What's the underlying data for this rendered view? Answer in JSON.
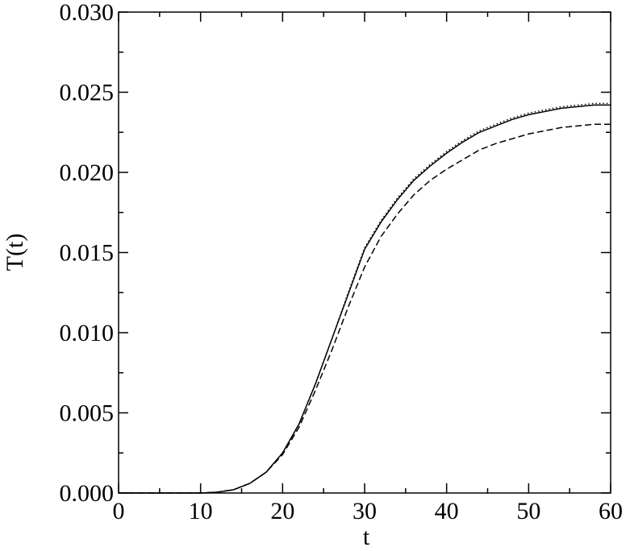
{
  "chart_data": {
    "type": "line",
    "x_label": "t",
    "y_label": "T(t)",
    "x": [
      0,
      2,
      4,
      6,
      8,
      10,
      12,
      14,
      16,
      18,
      20,
      22,
      24,
      26,
      28,
      30,
      32,
      34,
      36,
      38,
      40,
      42,
      44,
      46,
      48,
      50,
      52,
      54,
      56,
      58,
      60
    ],
    "series": [
      {
        "color": "#000000",
        "style": "solid",
        "values": [
          0,
          0,
          0,
          0,
          0,
          0,
          5e-05,
          0.0002,
          0.0006,
          0.0013,
          0.0025,
          0.0043,
          0.0068,
          0.0096,
          0.0124,
          0.0152,
          0.0169,
          0.0183,
          0.0195,
          0.0204,
          0.0212,
          0.0219,
          0.0225,
          0.0229,
          0.0233,
          0.0236,
          0.0238,
          0.024,
          0.0241,
          0.0242,
          0.0242
        ]
      },
      {
        "color": "#000000",
        "style": "dotted",
        "values": [
          0,
          0,
          0,
          0,
          0,
          0,
          5e-05,
          0.0002,
          0.0006,
          0.0013,
          0.0025,
          0.0043,
          0.0068,
          0.0096,
          0.0125,
          0.0153,
          0.017,
          0.0184,
          0.0196,
          0.0205,
          0.0213,
          0.022,
          0.0226,
          0.023,
          0.0234,
          0.0237,
          0.0239,
          0.0241,
          0.0242,
          0.0243,
          0.0243
        ]
      },
      {
        "color": "#000000",
        "style": "dashed",
        "values": [
          0,
          0,
          0,
          0,
          0,
          0,
          5e-05,
          0.0002,
          0.0006,
          0.0013,
          0.0024,
          0.0041,
          0.0064,
          0.0089,
          0.0116,
          0.0141,
          0.016,
          0.0174,
          0.0186,
          0.0195,
          0.0202,
          0.0208,
          0.0214,
          0.0218,
          0.0221,
          0.0224,
          0.0226,
          0.0228,
          0.0229,
          0.023,
          0.023
        ]
      }
    ],
    "xlim": [
      0,
      60
    ],
    "xticks": [
      0,
      10,
      20,
      30,
      40,
      50,
      60
    ],
    "xminorticks": [
      5,
      15,
      25,
      35,
      45,
      55
    ],
    "ylim": [
      0,
      0.03
    ],
    "yticks": [
      {
        "value": 0,
        "label": "0.000"
      },
      {
        "value": 0.005,
        "label": "0.005"
      },
      {
        "value": 0.01,
        "label": "0.010"
      },
      {
        "value": 0.015,
        "label": "0.015"
      },
      {
        "value": 0.02,
        "label": "0.020"
      },
      {
        "value": 0.025,
        "label": "0.025"
      },
      {
        "value": 0.03,
        "label": "0.030"
      }
    ],
    "yminorticks": [
      0.0025,
      0.0075,
      0.0125,
      0.0175,
      0.0225,
      0.0275
    ],
    "grid": false
  }
}
